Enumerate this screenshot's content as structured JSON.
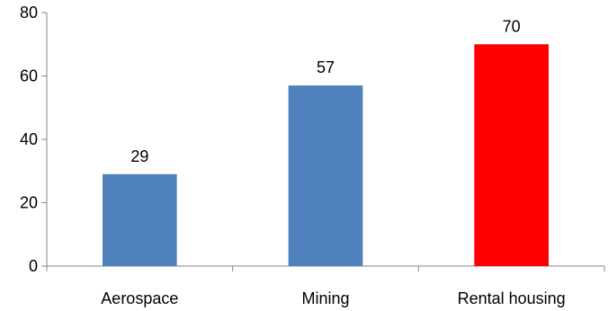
{
  "chart_data": {
    "type": "bar",
    "title": "",
    "xlabel": "",
    "ylabel": "",
    "categories": [
      "Aerospace",
      "Mining",
      "Rental housing"
    ],
    "values": [
      29,
      57,
      70
    ],
    "data_labels": [
      "29",
      "57",
      "70"
    ],
    "bar_colors": [
      "#4f81bd",
      "#4f81bd",
      "#ff0000"
    ],
    "ylim": [
      0,
      80
    ],
    "yticks": [
      0,
      20,
      40,
      60,
      80
    ],
    "ytick_labels": [
      "0",
      "20",
      "40",
      "60",
      "80"
    ],
    "grid": false,
    "legend": "none"
  }
}
